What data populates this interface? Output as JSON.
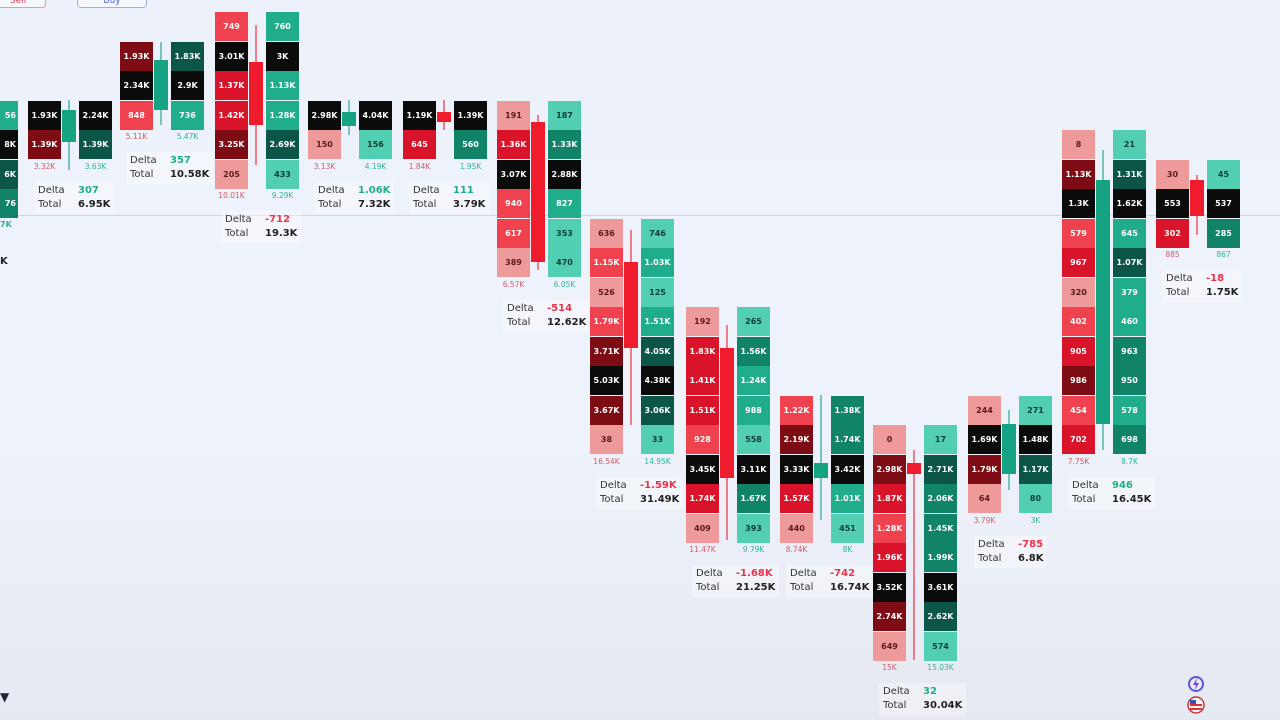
{
  "toolbar": {
    "sell_label": "Sell",
    "buy_label": "Buy"
  },
  "colors": {
    "bid_light": "#ee9a9a",
    "bid_mid": "#f0414e",
    "bid_strong": "#d9132a",
    "bid_dark": "#7e0c14",
    "ask_light": "#52cfb3",
    "ask_mid": "#20ad8c",
    "ask_strong": "#118468",
    "ask_dark": "#0b5646",
    "poc": "#0b0b0b",
    "up": "#15a383",
    "down": "#ee1c2c",
    "delta_pos": "#1fae8c",
    "delta_neg": "#e8334a"
  },
  "left_fragment": {
    "ask_cells": [
      "56",
      "8K",
      "6K",
      "76"
    ],
    "ask_total": "7K",
    "total": "K"
  },
  "labels": {
    "delta": "Delta",
    "total": "Total"
  },
  "candles": [
    {
      "direction": "up",
      "bid": [
        "1.93K",
        "1.39K"
      ],
      "ask": [
        "2.24K",
        "1.39K"
      ],
      "bid_total": "3.32K",
      "ask_total": "3.63K",
      "delta": "307",
      "total": "6.95K"
    },
    {
      "direction": "up",
      "bid": [
        "1.93K",
        "2.34K",
        "848"
      ],
      "ask": [
        "1.83K",
        "2.9K",
        "736"
      ],
      "bid_total": "5.11K",
      "ask_total": "5.47K",
      "delta": "357",
      "total": "10.58K"
    },
    {
      "direction": "down",
      "bid": [
        "749",
        "3.01K",
        "1.37K",
        "1.42K",
        "3.25K",
        "205"
      ],
      "ask": [
        "760",
        "3K",
        "1.13K",
        "1.28K",
        "2.69K",
        "433"
      ],
      "bid_total": "10.01K",
      "ask_total": "9.29K",
      "delta": "-712",
      "total": "19.3K"
    },
    {
      "direction": "up",
      "bid": [
        "2.98K",
        "150"
      ],
      "ask": [
        "4.04K",
        "156"
      ],
      "bid_total": "3.13K",
      "ask_total": "4.19K",
      "delta": "1.06K",
      "total": "7.32K"
    },
    {
      "direction": "down",
      "bid": [
        "1.19K",
        "645"
      ],
      "ask": [
        "1.39K",
        "560"
      ],
      "bid_total": "1.84K",
      "ask_total": "1.95K",
      "delta": "111",
      "total": "3.79K"
    },
    {
      "direction": "down",
      "bid": [
        "191",
        "1.36K",
        "3.07K",
        "940",
        "617",
        "389"
      ],
      "ask": [
        "187",
        "1.33K",
        "2.88K",
        "827",
        "353",
        "470"
      ],
      "bid_total": "6.57K",
      "ask_total": "6.05K",
      "delta": "-514",
      "total": "12.62K"
    },
    {
      "direction": "down",
      "bid": [
        "636",
        "1.15K",
        "526",
        "1.79K",
        "3.71K",
        "5.03K",
        "3.67K",
        "38"
      ],
      "ask": [
        "746",
        "1.03K",
        "125",
        "1.51K",
        "4.05K",
        "4.38K",
        "3.06K",
        "33"
      ],
      "bid_total": "16.54K",
      "ask_total": "14.95K",
      "delta": "-1.59K",
      "total": "31.49K"
    },
    {
      "direction": "down",
      "bid": [
        "192",
        "1.83K",
        "1.41K",
        "1.51K",
        "928",
        "3.45K",
        "1.74K",
        "409"
      ],
      "ask": [
        "265",
        "1.56K",
        "1.24K",
        "988",
        "558",
        "3.11K",
        "1.67K",
        "393"
      ],
      "bid_total": "11.47K",
      "ask_total": "9.79K",
      "delta": "-1.68K",
      "total": "21.25K"
    },
    {
      "direction": "up",
      "bid": [
        "1.22K",
        "2.19K",
        "3.33K",
        "1.57K",
        "440"
      ],
      "ask": [
        "1.38K",
        "1.74K",
        "3.42K",
        "1.01K",
        "451"
      ],
      "bid_total": "8.74K",
      "ask_total": "8K",
      "delta": "-742",
      "total": "16.74K"
    },
    {
      "direction": "down",
      "bid": [
        "0",
        "2.98K",
        "1.87K",
        "1.28K",
        "1.96K",
        "3.52K",
        "2.74K",
        "649"
      ],
      "ask": [
        "17",
        "2.71K",
        "2.06K",
        "1.45K",
        "1.99K",
        "3.61K",
        "2.62K",
        "574"
      ],
      "bid_total": "15K",
      "ask_total": "15.03K",
      "delta": "32",
      "total": "30.04K"
    },
    {
      "direction": "up",
      "bid": [
        "244",
        "1.69K",
        "1.79K",
        "64"
      ],
      "ask": [
        "271",
        "1.48K",
        "1.17K",
        "80"
      ],
      "bid_total": "3.79K",
      "ask_total": "3K",
      "delta": "-785",
      "total": "6.8K"
    },
    {
      "direction": "up",
      "bid": [
        "8",
        "1.13K",
        "1.3K",
        "579",
        "967",
        "320",
        "402",
        "905",
        "986",
        "454",
        "702"
      ],
      "ask": [
        "21",
        "1.31K",
        "1.62K",
        "645",
        "1.07K",
        "379",
        "460",
        "963",
        "950",
        "578",
        "698"
      ],
      "bid_total": "7.75K",
      "ask_total": "8.7K",
      "delta": "946",
      "total": "16.45K"
    },
    {
      "direction": "down",
      "bid": [
        "30",
        "553",
        "302"
      ],
      "ask": [
        "45",
        "537",
        "285"
      ],
      "bid_total": "885",
      "ask_total": "867",
      "delta": "-18",
      "total": "1.75K"
    }
  ],
  "icons": {
    "bottom_left": "arrow-down-icon",
    "bottom_right_1": "lightning-sync-icon",
    "bottom_right_2": "us-flag-icon"
  }
}
